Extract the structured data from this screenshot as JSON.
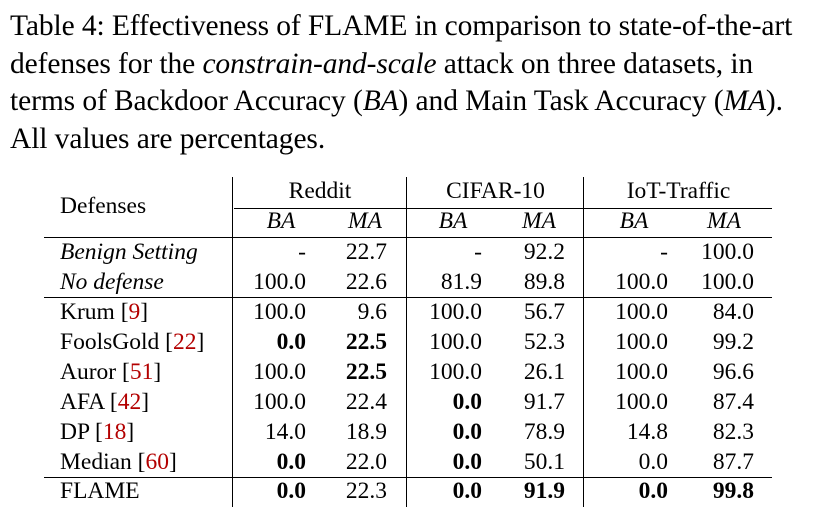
{
  "caption": {
    "prefix": "Table 4: Effectiveness of FLAME in comparison to state-of-the-art defenses for the ",
    "attack": "constrain-and-scale",
    "middle1": " attack on three datasets, in terms of Backdoor Accuracy (",
    "ba": "BA",
    "middle2": ") and Main Task Accuracy (",
    "ma": "MA",
    "suffix": "). All values are percentages."
  },
  "table": {
    "col_defenses": "Defenses",
    "datasets": [
      "Reddit",
      "CIFAR-10",
      "IoT-Traffic"
    ],
    "sub": [
      "BA",
      "MA",
      "BA",
      "MA",
      "BA",
      "MA"
    ],
    "rows": [
      {
        "name": "Benign Setting",
        "ref": "",
        "italic": true,
        "values": [
          "-",
          "22.7",
          "-",
          "92.2",
          "-",
          "100.0"
        ],
        "bold": [
          false,
          false,
          false,
          false,
          false,
          false
        ]
      },
      {
        "name": "No defense",
        "ref": "",
        "italic": true,
        "values": [
          "100.0",
          "22.6",
          "81.9",
          "89.8",
          "100.0",
          "100.0"
        ],
        "bold": [
          false,
          false,
          false,
          false,
          false,
          false
        ]
      },
      {
        "name": "Krum",
        "ref": "9",
        "italic": false,
        "values": [
          "100.0",
          "9.6",
          "100.0",
          "56.7",
          "100.0",
          "84.0"
        ],
        "bold": [
          false,
          false,
          false,
          false,
          false,
          false
        ]
      },
      {
        "name": "FoolsGold",
        "ref": "22",
        "italic": false,
        "values": [
          "0.0",
          "22.5",
          "100.0",
          "52.3",
          "100.0",
          "99.2"
        ],
        "bold": [
          true,
          true,
          false,
          false,
          false,
          false
        ]
      },
      {
        "name": "Auror",
        "ref": "51",
        "italic": false,
        "values": [
          "100.0",
          "22.5",
          "100.0",
          "26.1",
          "100.0",
          "96.6"
        ],
        "bold": [
          false,
          true,
          false,
          false,
          false,
          false
        ]
      },
      {
        "name": "AFA",
        "ref": "42",
        "italic": false,
        "values": [
          "100.0",
          "22.4",
          "0.0",
          "91.7",
          "100.0",
          "87.4"
        ],
        "bold": [
          false,
          false,
          true,
          false,
          false,
          false
        ]
      },
      {
        "name": "DP",
        "ref": "18",
        "italic": false,
        "values": [
          "14.0",
          "18.9",
          "0.0",
          "78.9",
          "14.8",
          "82.3"
        ],
        "bold": [
          false,
          false,
          true,
          false,
          false,
          false
        ]
      },
      {
        "name": "Median",
        "ref": "60",
        "italic": false,
        "values": [
          "0.0",
          "22.0",
          "0.0",
          "50.1",
          "0.0",
          "87.7"
        ],
        "bold": [
          true,
          false,
          true,
          false,
          false,
          false
        ]
      },
      {
        "name": "FLAME",
        "ref": "",
        "italic": false,
        "values": [
          "0.0",
          "22.3",
          "0.0",
          "91.9",
          "0.0",
          "99.8"
        ],
        "bold": [
          true,
          false,
          true,
          true,
          true,
          true
        ]
      }
    ]
  }
}
